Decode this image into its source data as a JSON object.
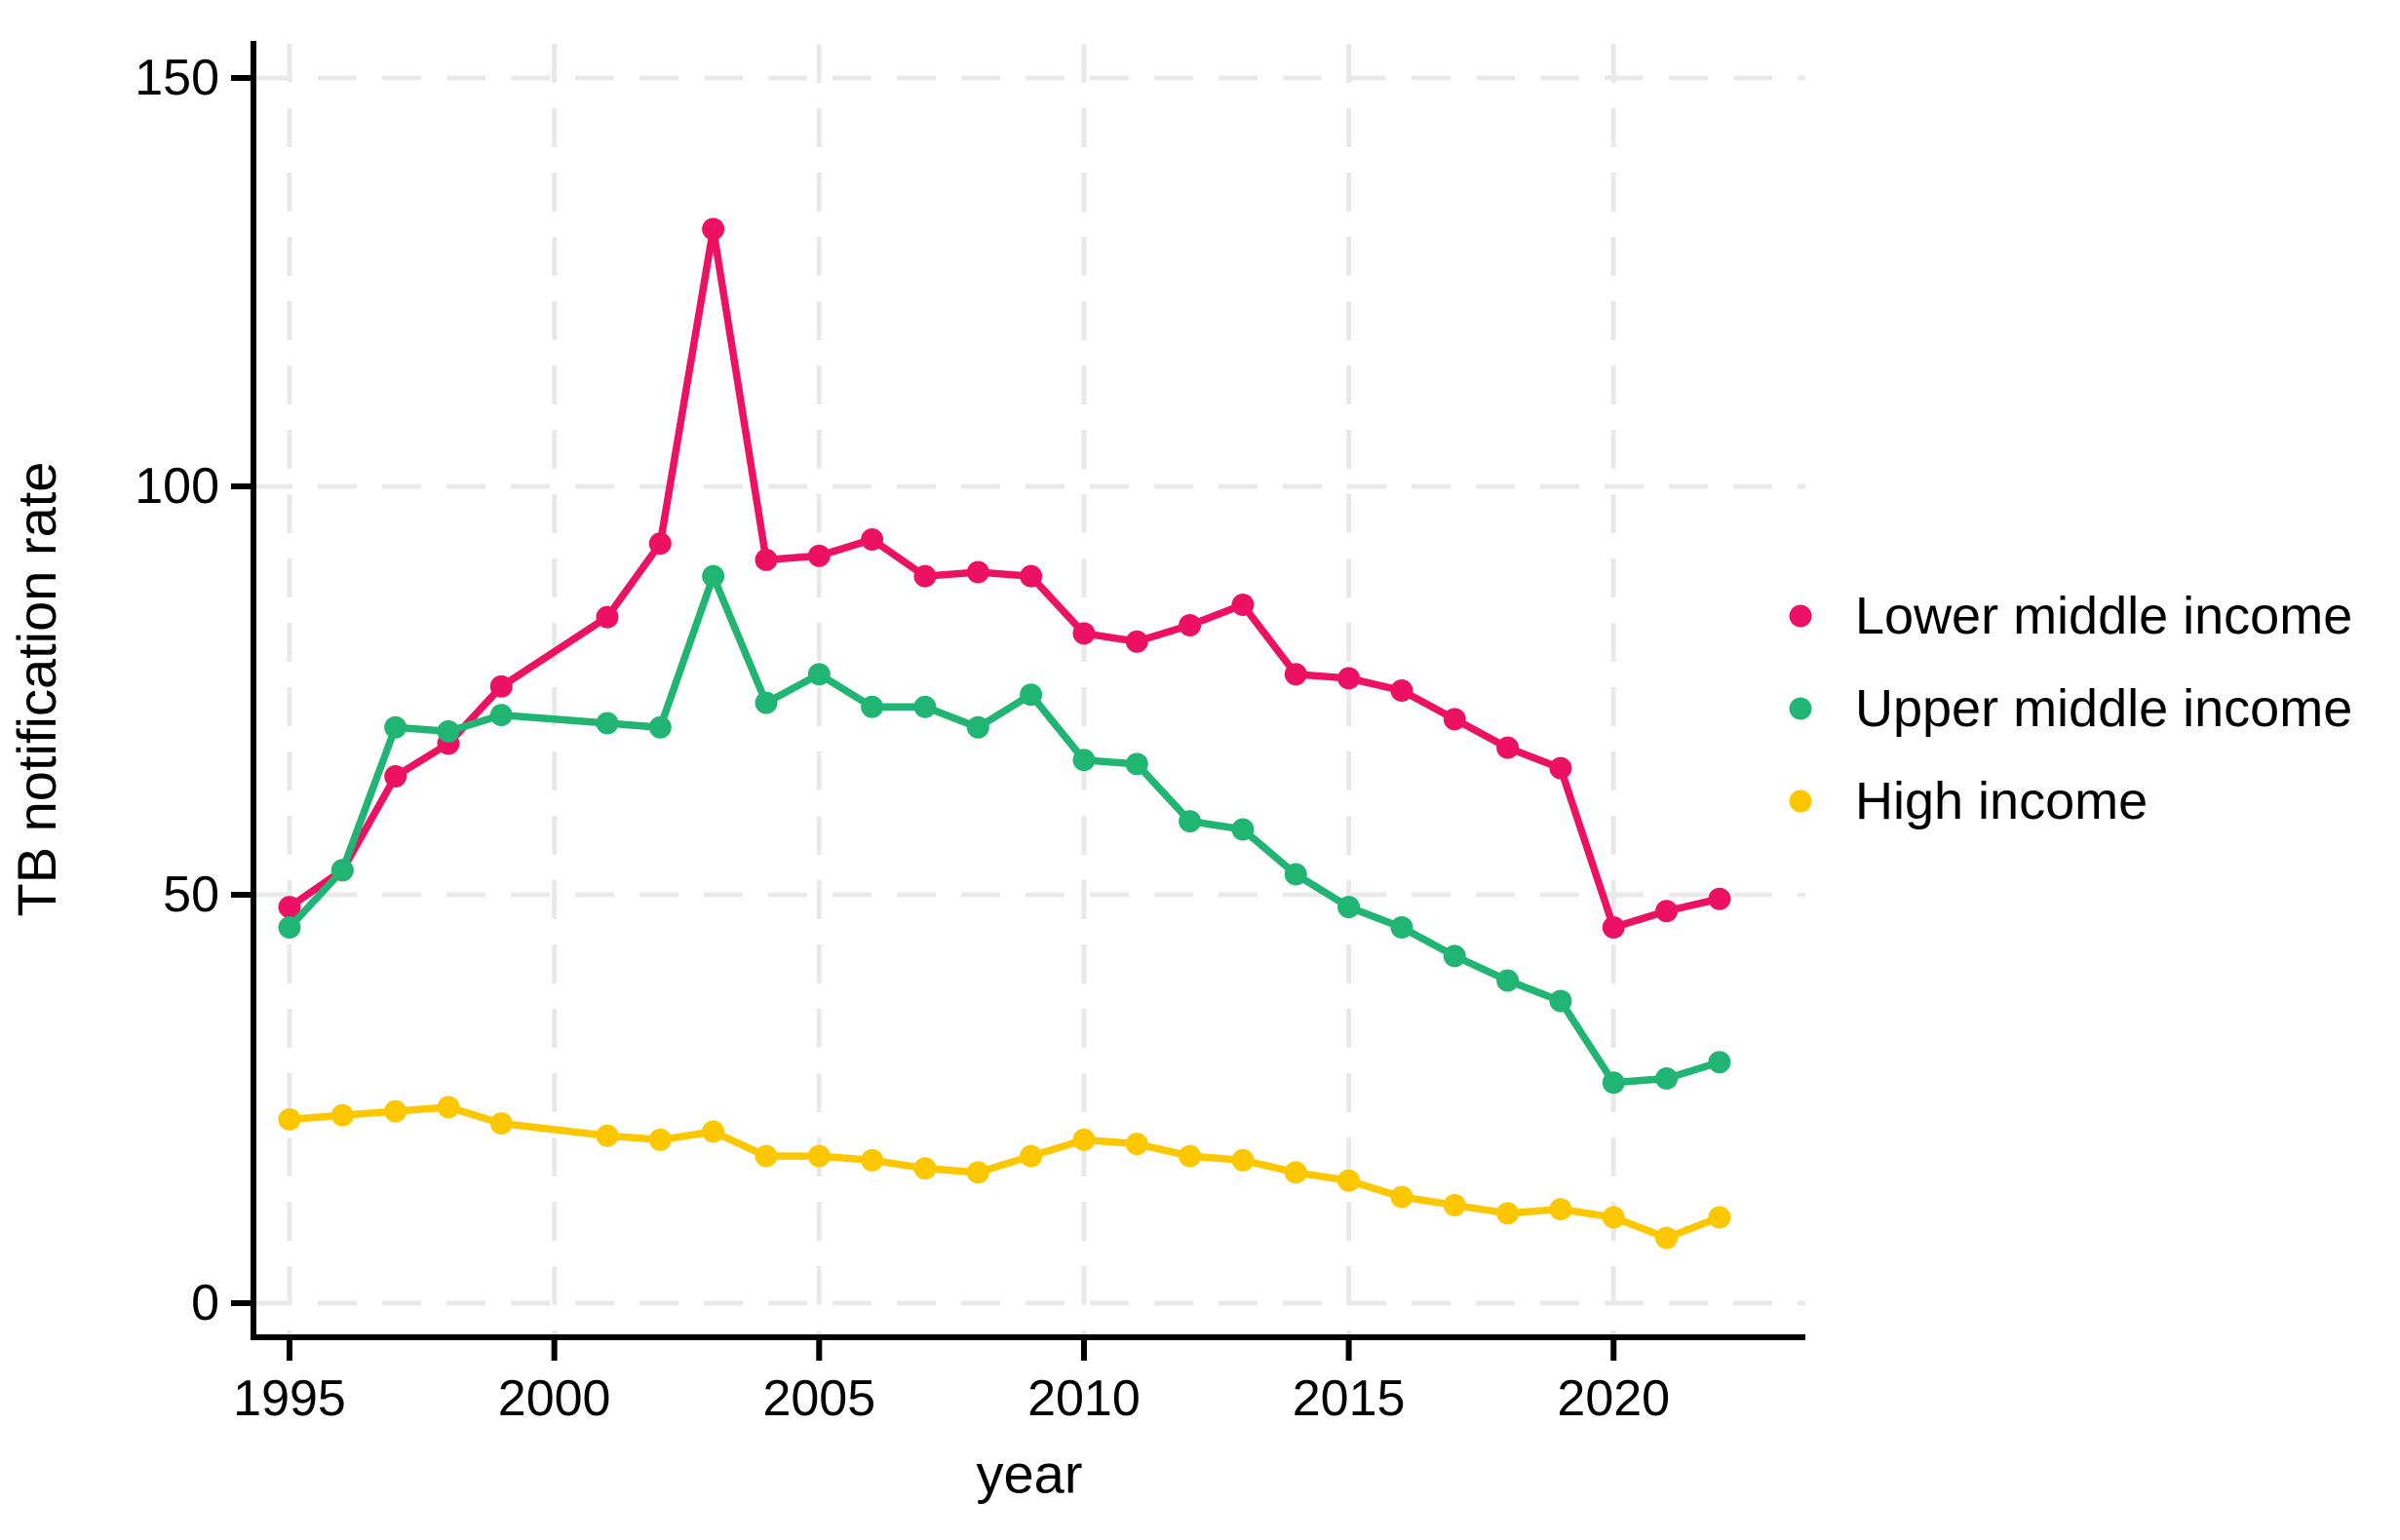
{
  "figure": {
    "background": "#ffffff",
    "axis_color": "#000000",
    "grid_color": "#e9e9e9",
    "text_color": "#000000"
  },
  "chart_data": {
    "type": "line",
    "title": "",
    "xlabel": "year",
    "ylabel": "TB notification rate",
    "x_ticks": [
      1995,
      2000,
      2005,
      2010,
      2015,
      2020
    ],
    "y_ticks": [
      0,
      50,
      100,
      150
    ],
    "xlim": [
      1994.3,
      2023.6
    ],
    "ylim": [
      0,
      157.5
    ],
    "grid": "dashed horizontal and vertical gridlines at every tick",
    "legend_position": "right-middle",
    "marker": "filled-circle",
    "series": [
      {
        "name": "Lower middle income",
        "color": "#ed1164",
        "years": [
          1995,
          1996,
          1997,
          1998,
          1999,
          2001,
          2002,
          2003,
          2004,
          2005,
          2006,
          2007,
          2008,
          2009,
          2010,
          2011,
          2012,
          2013,
          2014,
          2015,
          2016,
          2017,
          2018,
          2019,
          2020,
          2021,
          2022
        ],
        "values": [
          48.5,
          53,
          64.5,
          68.5,
          75.5,
          84,
          93,
          131.5,
          91,
          91.5,
          93.5,
          89,
          89.5,
          89,
          82,
          81,
          83,
          85.5,
          77,
          76.5,
          75,
          71.5,
          68,
          65.5,
          46,
          48,
          49.5
        ]
      },
      {
        "name": "Upper middle income",
        "color": "#21b573",
        "years": [
          1995,
          1996,
          1997,
          1998,
          1999,
          2001,
          2002,
          2003,
          2004,
          2005,
          2006,
          2007,
          2008,
          2009,
          2010,
          2011,
          2012,
          2013,
          2014,
          2015,
          2016,
          2017,
          2018,
          2019,
          2020,
          2021,
          2022
        ],
        "values": [
          46,
          53,
          70.5,
          70,
          72,
          71,
          70.5,
          89,
          73.5,
          77,
          73,
          73,
          70.5,
          74.5,
          66.5,
          66,
          59,
          58,
          52.5,
          48.5,
          46,
          42.5,
          39.5,
          37,
          27,
          27.5,
          29.5
        ]
      },
      {
        "name": "High income",
        "color": "#fdc700",
        "years": [
          1995,
          1996,
          1997,
          1998,
          1999,
          2001,
          2002,
          2003,
          2004,
          2005,
          2006,
          2007,
          2008,
          2009,
          2010,
          2011,
          2012,
          2013,
          2014,
          2015,
          2016,
          2017,
          2018,
          2019,
          2020,
          2021,
          2022
        ],
        "values": [
          22.5,
          23,
          23.5,
          24,
          22,
          20.5,
          20,
          21,
          18,
          18,
          17.5,
          16.5,
          16,
          18,
          20,
          19.5,
          18,
          17.5,
          16,
          15,
          13,
          12,
          11,
          11.5,
          10.5,
          8,
          10.5
        ]
      }
    ]
  }
}
